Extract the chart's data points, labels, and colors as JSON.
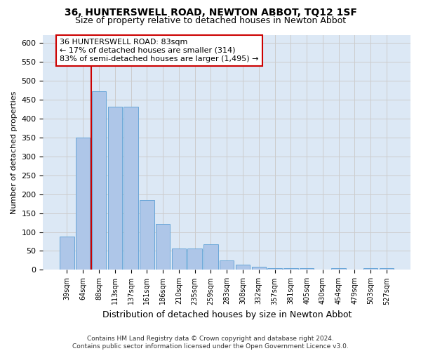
{
  "title": "36, HUNTERSWELL ROAD, NEWTON ABBOT, TQ12 1SF",
  "subtitle": "Size of property relative to detached houses in Newton Abbot",
  "xlabel": "Distribution of detached houses by size in Newton Abbot",
  "ylabel": "Number of detached properties",
  "footer_line1": "Contains HM Land Registry data © Crown copyright and database right 2024.",
  "footer_line2": "Contains public sector information licensed under the Open Government Licence v3.0.",
  "bar_labels": [
    "39sqm",
    "64sqm",
    "88sqm",
    "113sqm",
    "137sqm",
    "161sqm",
    "186sqm",
    "210sqm",
    "235sqm",
    "259sqm",
    "283sqm",
    "308sqm",
    "332sqm",
    "357sqm",
    "381sqm",
    "405sqm",
    "430sqm",
    "454sqm",
    "479sqm",
    "503sqm",
    "527sqm"
  ],
  "bar_values": [
    88,
    349,
    472,
    430,
    430,
    184,
    122,
    56,
    56,
    68,
    25,
    13,
    9,
    5,
    5,
    5,
    0,
    5,
    0,
    5,
    5
  ],
  "bar_color": "#aec6e8",
  "bar_edgecolor": "#5a9fd4",
  "property_label": "36 HUNTERSWELL ROAD: 83sqm",
  "annotation_line1": "← 17% of detached houses are smaller (314)",
  "annotation_line2": "83% of semi-detached houses are larger (1,495) →",
  "vline_color": "#cc0000",
  "vline_position": 1.5,
  "annotation_box_color": "#cc0000",
  "ylim": [
    0,
    620
  ],
  "yticks": [
    0,
    50,
    100,
    150,
    200,
    250,
    300,
    350,
    400,
    450,
    500,
    550,
    600
  ],
  "grid_color": "#cccccc",
  "bg_color": "#dce8f5",
  "title_fontsize": 10,
  "subtitle_fontsize": 9,
  "xlabel_fontsize": 9,
  "ylabel_fontsize": 8,
  "annotation_fontsize": 8
}
